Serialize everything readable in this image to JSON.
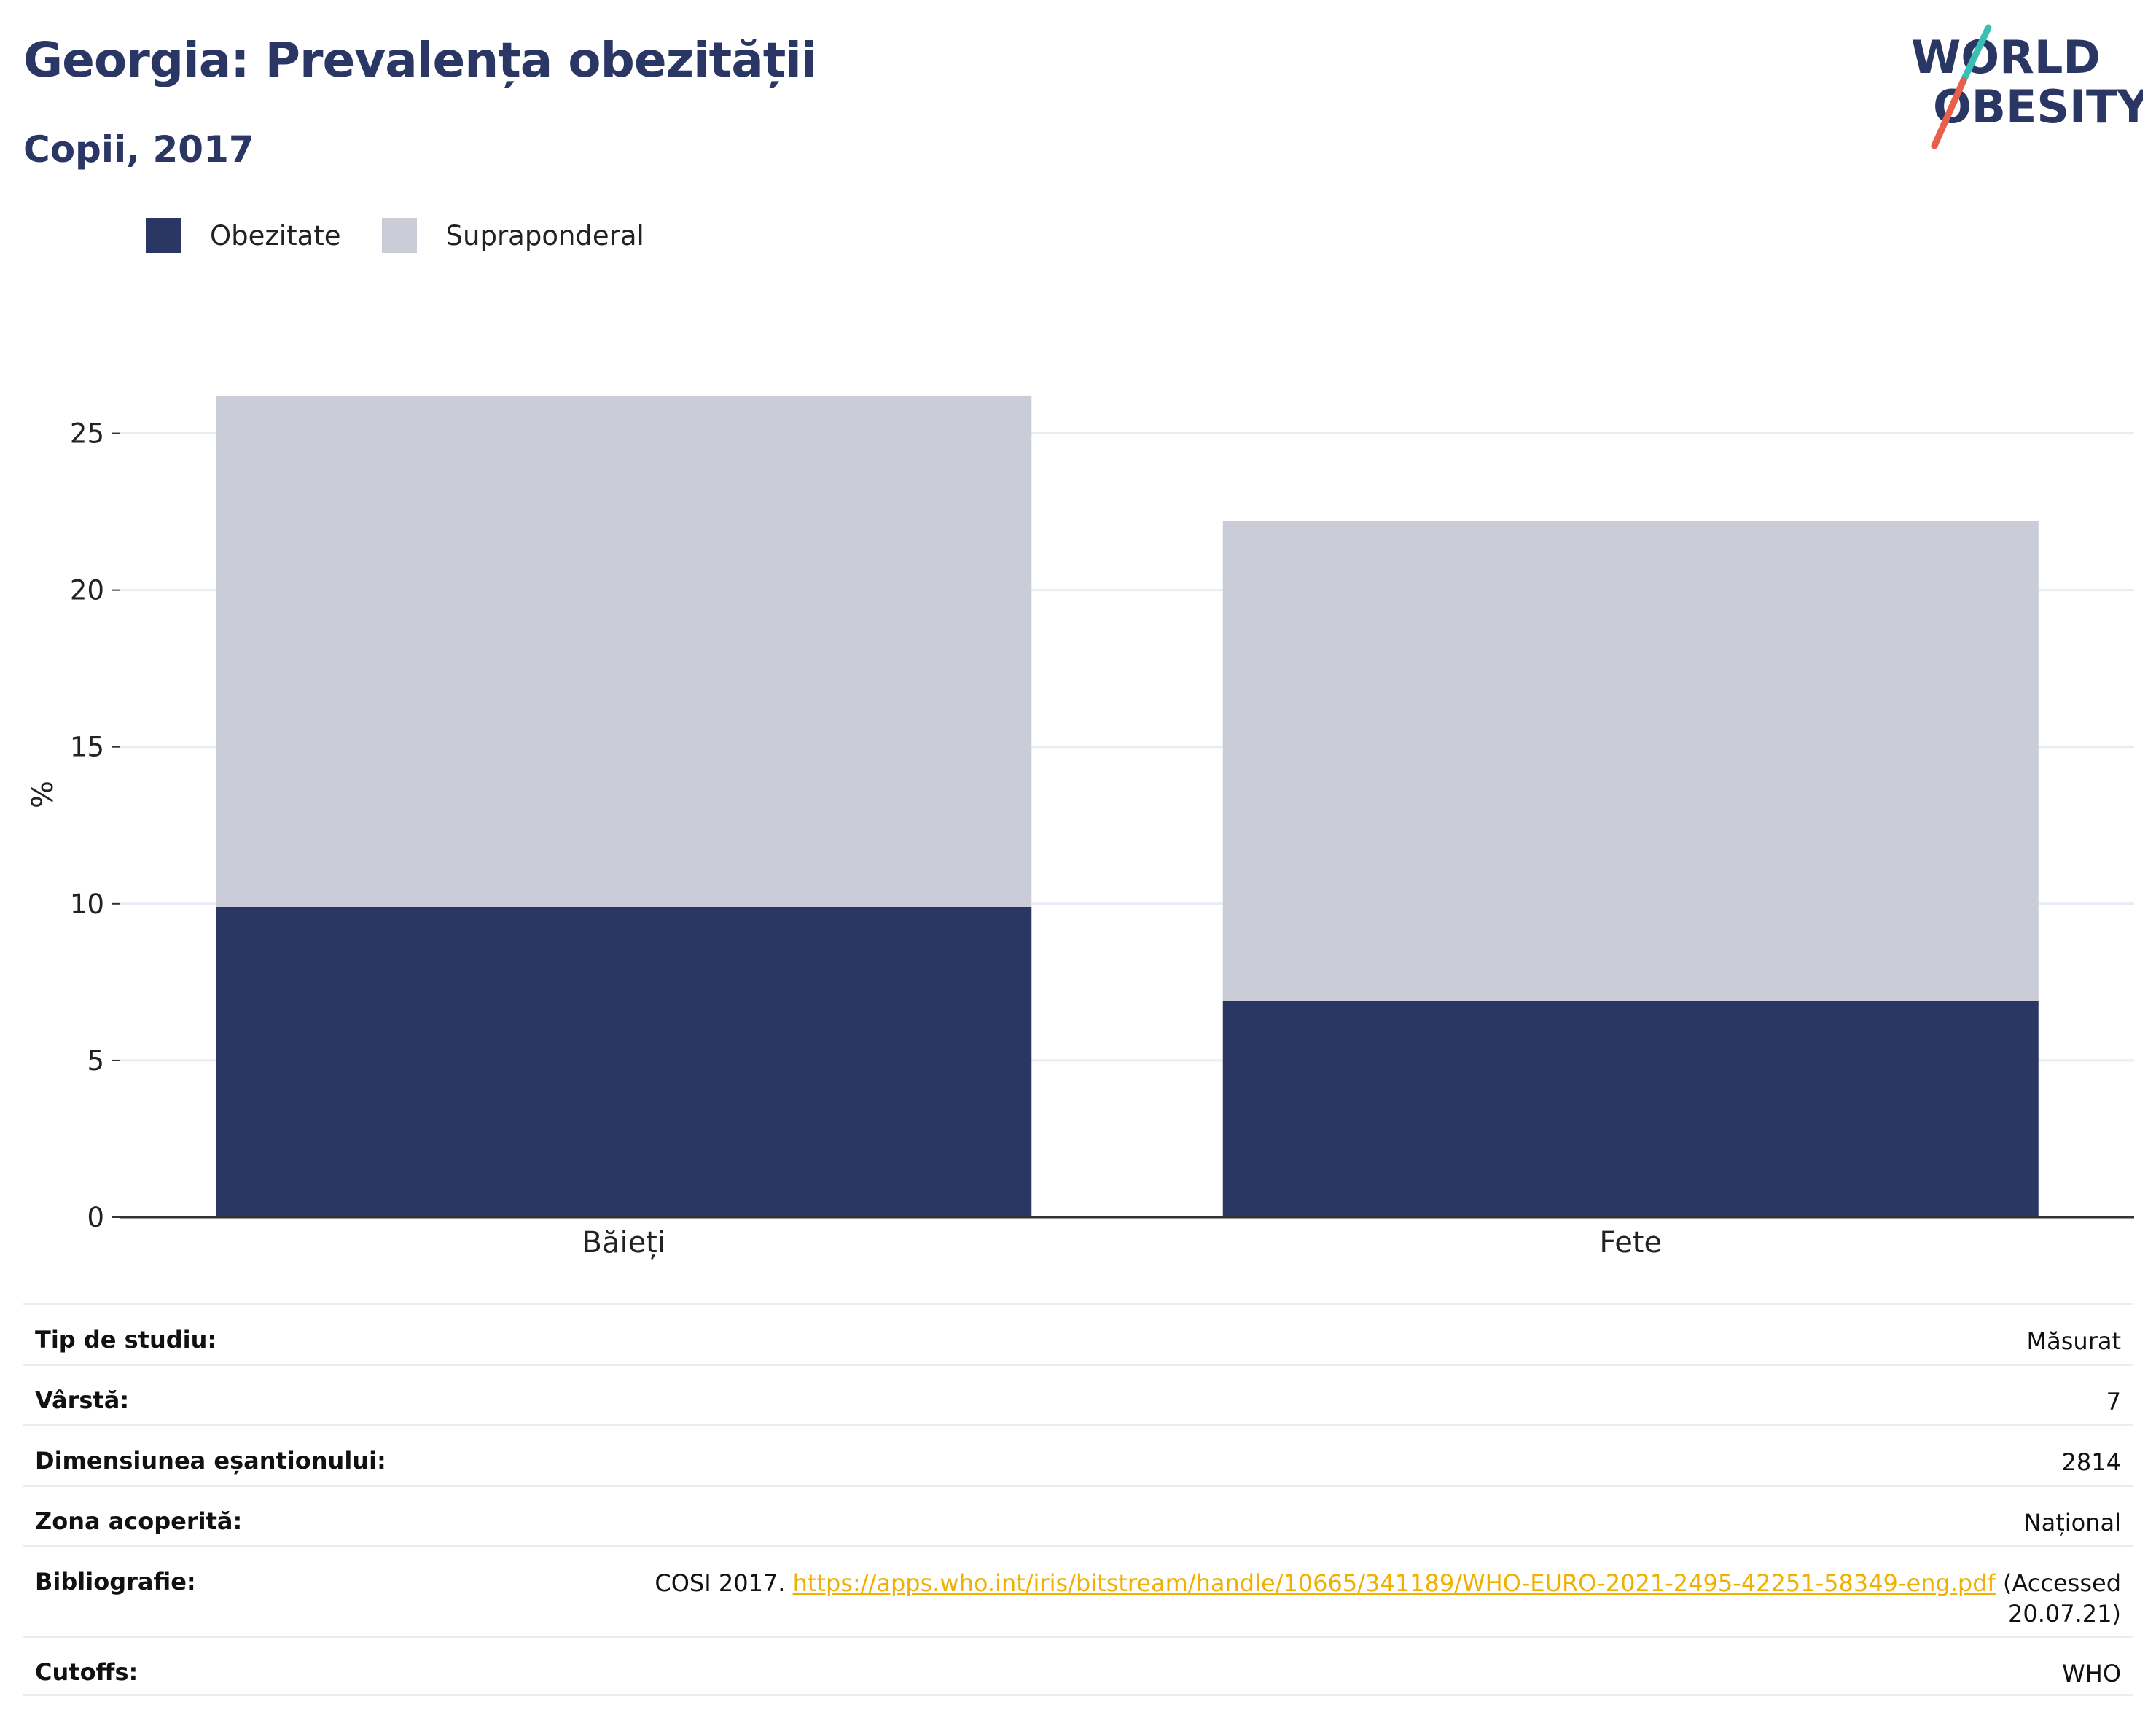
{
  "header": {
    "title": "Georgia: Prevalența obezității",
    "subtitle": "Copii, 2017"
  },
  "logo": {
    "line1": "WORLD",
    "line2": "OBESITY",
    "colors": {
      "text": "#2a3663",
      "slash_teal": "#3bbfb5",
      "slash_red": "#e8604c"
    }
  },
  "colors": {
    "obesity": "#2a3663",
    "overweight": "#cacdd8",
    "gridline": "#e9ecf5",
    "axis": "#333333",
    "link": "#f0b000"
  },
  "chart_data": {
    "type": "bar",
    "stacked": true,
    "categories": [
      "Băieți",
      "Fete"
    ],
    "series": [
      {
        "name": "Obezitate",
        "values": [
          9.9,
          6.9
        ]
      },
      {
        "name": "Supraponderal",
        "values": [
          16.3,
          15.3
        ]
      }
    ],
    "ylabel": "%",
    "ylim": [
      0,
      26.5
    ],
    "yticks": [
      0,
      5,
      10,
      15,
      20,
      25
    ],
    "grid": true,
    "legend_position": "top-left"
  },
  "info": [
    {
      "key": "Tip de studiu:",
      "value": "Măsurat"
    },
    {
      "key": "Vârstă:",
      "value": "7"
    },
    {
      "key": "Dimensiunea eșantionului:",
      "value": "2814"
    },
    {
      "key": "Zona acoperită:",
      "value": "Național"
    },
    {
      "key": "Bibliografie:",
      "prefix": "COSI 2017. ",
      "link": "https://apps.who.int/iris/bitstream/handle/10665/341189/WHO-EURO-2021-2495-42251-58349-eng.pdf",
      "suffix_line1": " (Accessed",
      "suffix_line2": "20.07.21)"
    },
    {
      "key": "Cutoffs:",
      "value": "WHO"
    }
  ]
}
